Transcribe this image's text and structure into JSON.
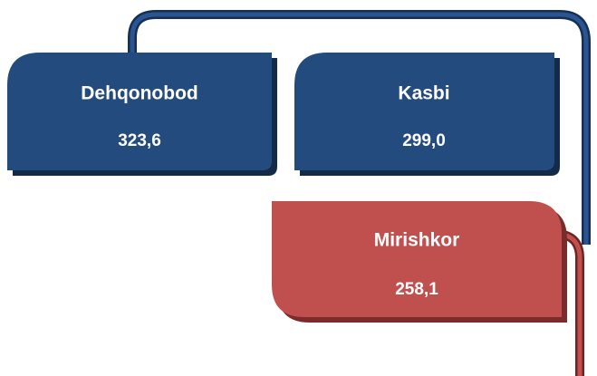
{
  "nodes": [
    {
      "label": "Dehqonobod",
      "value": "323,6"
    },
    {
      "label": "Kasbi",
      "value": "299,0"
    },
    {
      "label": "Mirishkor",
      "value": "258,1"
    }
  ]
}
